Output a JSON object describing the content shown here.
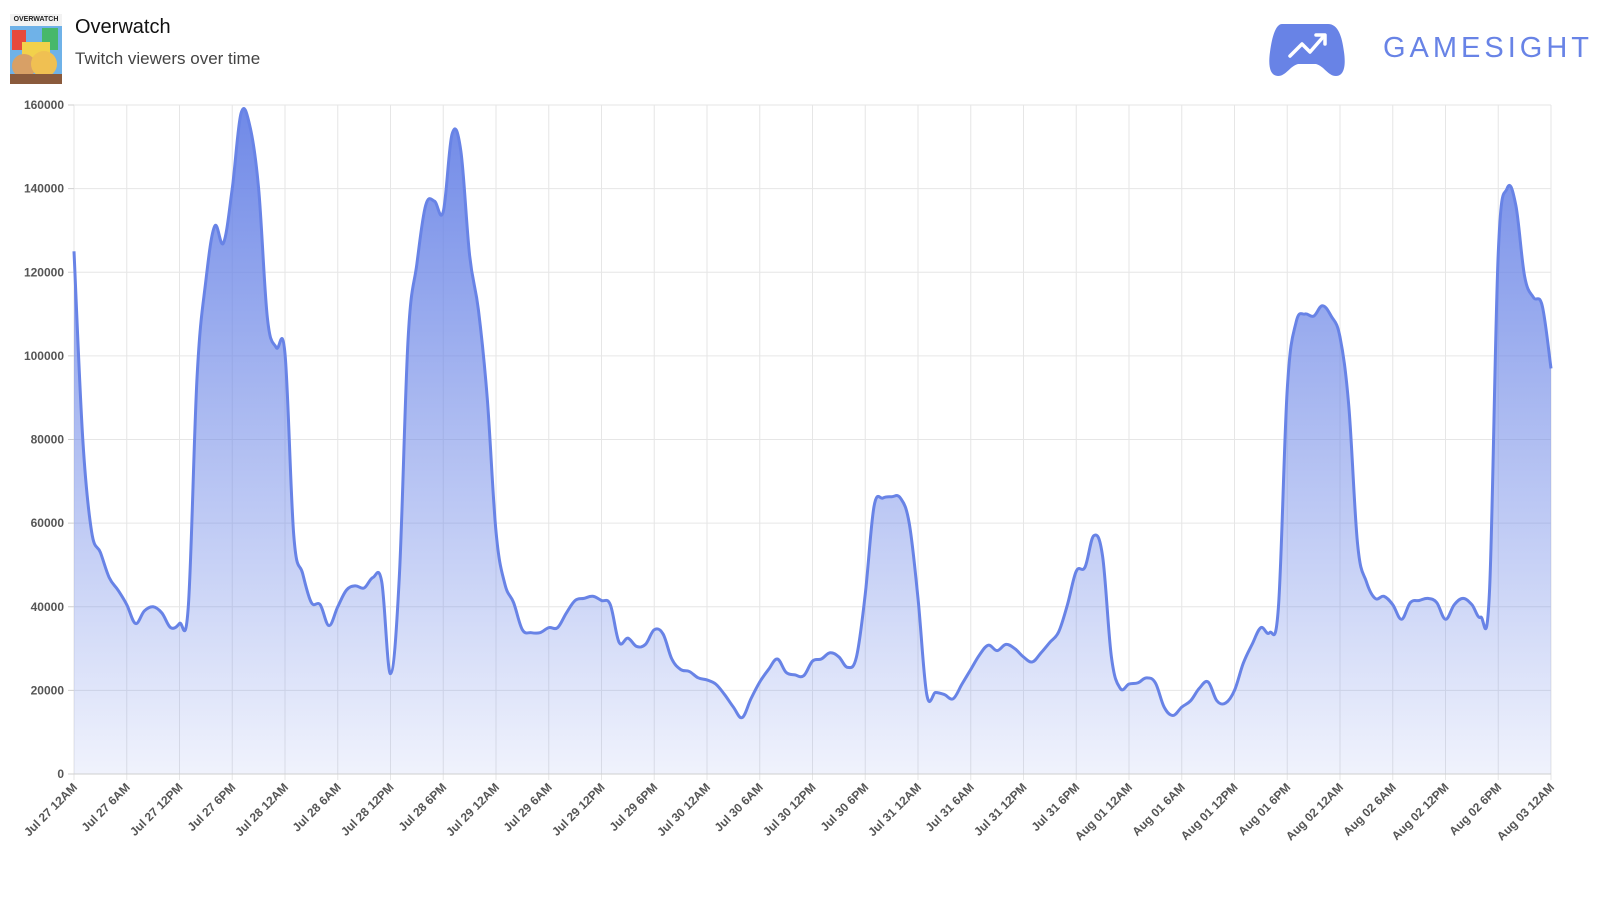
{
  "header": {
    "title": "Overwatch",
    "subtitle": "Twitch viewers over time",
    "game_art_label": "OVERWATCH"
  },
  "brand": {
    "name": "GAMESIGHT",
    "color": "#6883e6"
  },
  "chart_data": {
    "type": "area",
    "title": "",
    "xlabel": "",
    "ylabel": "",
    "ylim": [
      0,
      160000
    ],
    "yticks": [
      0,
      20000,
      40000,
      60000,
      80000,
      100000,
      120000,
      140000,
      160000
    ],
    "xticks": [
      "Jul 27 12AM",
      "Jul 27 6AM",
      "Jul 27 12PM",
      "Jul 27 6PM",
      "Jul 28 12AM",
      "Jul 28 6AM",
      "Jul 28 12PM",
      "Jul 28 6PM",
      "Jul 29 12AM",
      "Jul 29 6AM",
      "Jul 29 12PM",
      "Jul 29 6PM",
      "Jul 30 12AM",
      "Jul 30 6AM",
      "Jul 30 12PM",
      "Jul 30 6PM",
      "Jul 31 12AM",
      "Jul 31 6AM",
      "Jul 31 12PM",
      "Jul 31 6PM",
      "Aug 01 12AM",
      "Aug 01 6AM",
      "Aug 01 12PM",
      "Aug 01 6PM",
      "Aug 02 12AM",
      "Aug 02 6AM",
      "Aug 02 12PM",
      "Aug 02 6PM",
      "Aug 03 12AM"
    ],
    "x_unit": "hours since Jul 27 12AM",
    "grid": true,
    "line_color": "#6883e6",
    "series": [
      {
        "name": "",
        "x": [
          0,
          1,
          2,
          3,
          4,
          5,
          6,
          7,
          8,
          9,
          10,
          11,
          12,
          13,
          14,
          15,
          16,
          17,
          18,
          19,
          20,
          21,
          22,
          23,
          24,
          25,
          26,
          27,
          28,
          29,
          30,
          31,
          32,
          33,
          34,
          35,
          36,
          37,
          38,
          39,
          40,
          41,
          42,
          43,
          44,
          45,
          46,
          47,
          48,
          49,
          50,
          51,
          52,
          53,
          54,
          55,
          56,
          57,
          58,
          59,
          60,
          61,
          62,
          63,
          64,
          65,
          66,
          67,
          68,
          69,
          70,
          71,
          72,
          73,
          74,
          75,
          76,
          77,
          78,
          79,
          80,
          81,
          82,
          83,
          84,
          85,
          86,
          87,
          88,
          89,
          90,
          91,
          92,
          93,
          94,
          95,
          96,
          97,
          98,
          99,
          100,
          101,
          102,
          103,
          104,
          105,
          106,
          107,
          108,
          109,
          110,
          111,
          112,
          113,
          114,
          115,
          116,
          117,
          118,
          119,
          120,
          121,
          122,
          123,
          124,
          125,
          126,
          127,
          128,
          129,
          130,
          131,
          132,
          133,
          134,
          135,
          136,
          137,
          138,
          139,
          140,
          141,
          142,
          143,
          144,
          145,
          146,
          147,
          148,
          149,
          150,
          151,
          152,
          153,
          154,
          155,
          156,
          157,
          158,
          159,
          160,
          161,
          162,
          163,
          164,
          165,
          166,
          167,
          168
        ],
        "values": [
          125000,
          80000,
          58000,
          53000,
          47000,
          44000,
          40500,
          36000,
          39000,
          40000,
          38500,
          35000,
          36000,
          40000,
          95000,
          118000,
          131000,
          127000,
          140000,
          158000,
          155000,
          140000,
          109000,
          102000,
          100500,
          57000,
          48000,
          41000,
          40500,
          35500,
          40000,
          44000,
          45000,
          44500,
          47000,
          46000,
          24000,
          47000,
          104000,
          122000,
          136000,
          137000,
          134500,
          153000,
          149000,
          124000,
          111000,
          90000,
          58000,
          45500,
          41000,
          34500,
          33800,
          33800,
          35000,
          35000,
          38500,
          41500,
          42000,
          42500,
          41500,
          40500,
          31500,
          32500,
          30500,
          31000,
          34500,
          33500,
          27500,
          25000,
          24500,
          23000,
          22500,
          21500,
          19000,
          16000,
          13500,
          18000,
          22000,
          25000,
          27500,
          24300,
          23700,
          23500,
          27000,
          27500,
          29000,
          28000,
          25500,
          28000,
          43000,
          64000,
          66000,
          66300,
          66000,
          60000,
          42000,
          19000,
          19500,
          19000,
          18000,
          21500,
          25000,
          28500,
          30800,
          29500,
          31000,
          30000,
          28000,
          26800,
          29000,
          31500,
          34000,
          40500,
          48500,
          49500,
          57000,
          52000,
          28000,
          20500,
          21500,
          21800,
          23000,
          21800,
          16000,
          14000,
          16000,
          17500,
          20500,
          22000,
          17500,
          17000,
          20000,
          26500,
          31000,
          35000,
          33800,
          40000,
          92000,
          108000,
          110000,
          109500,
          112000,
          109500,
          104500,
          88000,
          55000,
          46000,
          42000,
          42500,
          40500,
          37000,
          41000,
          41500,
          42000,
          41000,
          37000,
          40500,
          42000,
          40500,
          37500,
          43500,
          124500,
          140000,
          136000,
          119000,
          114000,
          112000,
          97000
        ]
      }
    ]
  }
}
